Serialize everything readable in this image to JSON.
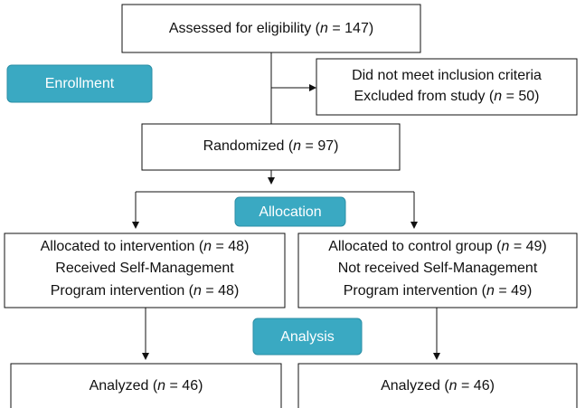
{
  "stages": {
    "enrollment": "Enrollment",
    "allocation": "Allocation",
    "analysis": "Analysis"
  },
  "nodes": [
    {
      "lines": [
        [
          "Assessed for eligibility (",
          "n",
          " = 147)"
        ]
      ]
    },
    {
      "lines": [
        [
          "Did not meet inclusion criteria"
        ],
        [
          "Excluded from study (",
          "n",
          " = 50)"
        ]
      ]
    },
    {
      "lines": [
        [
          "Randomized (",
          "n",
          " = 97)"
        ]
      ]
    },
    {
      "lines": [
        [
          "Allocated to intervention (",
          "n",
          " = 48)"
        ],
        [
          "Received Self-Management"
        ],
        [
          "Program intervention (",
          "n",
          " = 48)"
        ]
      ]
    },
    {
      "lines": [
        [
          "Allocated to control group (",
          "n",
          " = 49)"
        ],
        [
          "Not received Self-Management"
        ],
        [
          "Program intervention (",
          "n",
          " = 49)"
        ]
      ]
    },
    {
      "lines": [
        [
          "Analyzed (",
          "n",
          " = 46)"
        ]
      ]
    },
    {
      "lines": [
        [
          "Analyzed (",
          "n",
          " = 46)"
        ]
      ]
    }
  ]
}
